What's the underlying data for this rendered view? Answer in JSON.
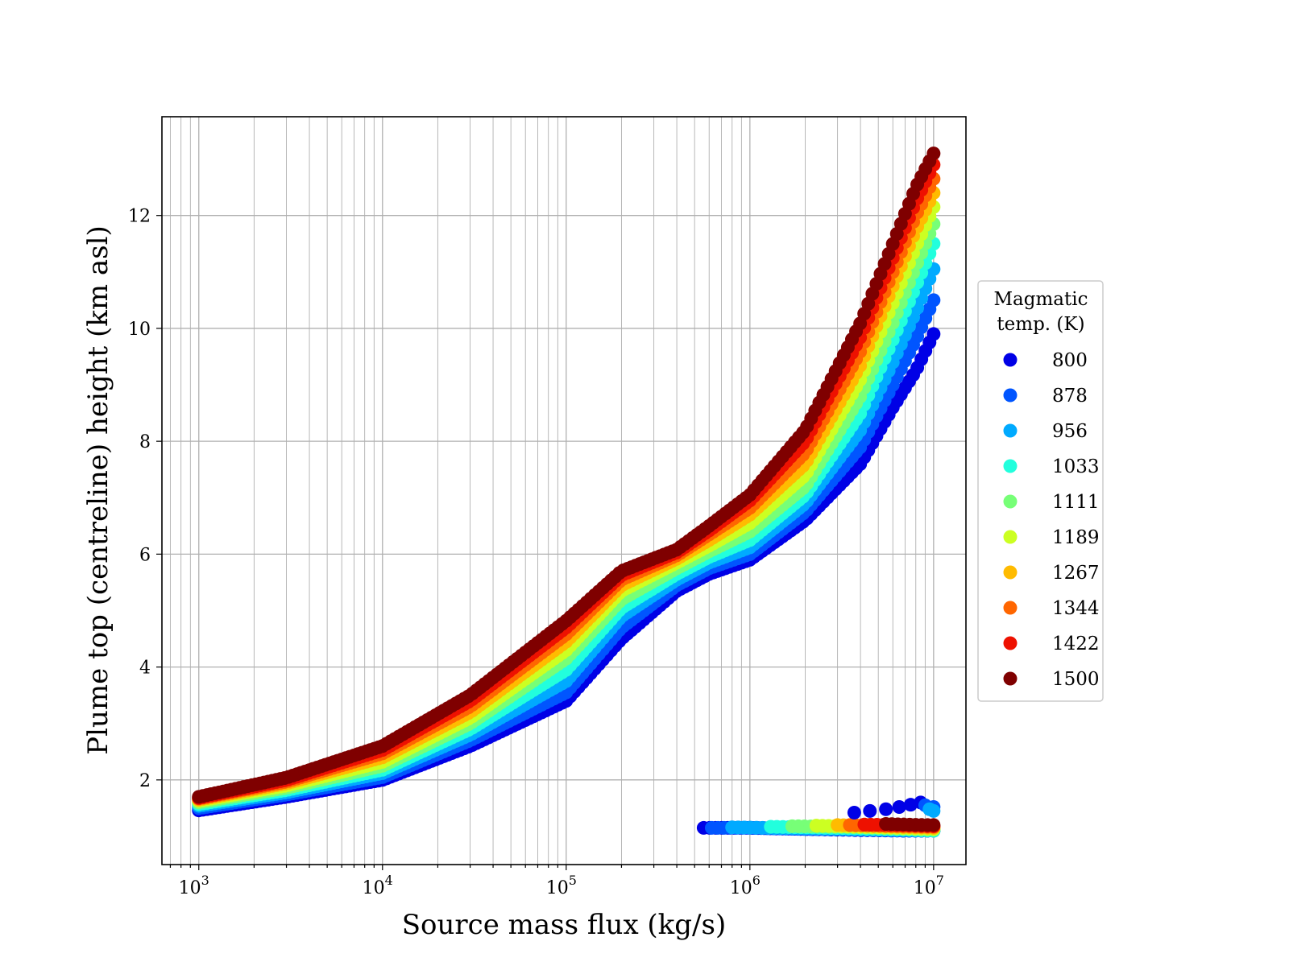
{
  "chart_data": {
    "type": "scatter",
    "title": "",
    "xlabel": "Source mass flux (kg/s)",
    "ylabel": "Plume top (centreline) height (km asl)",
    "x_scale": "log",
    "xlim": [
      630,
      15000000
    ],
    "ylim": [
      0.5,
      13.75
    ],
    "x_ticks": [
      {
        "value": 1000,
        "base": "10",
        "exp": "3"
      },
      {
        "value": 10000,
        "base": "10",
        "exp": "4"
      },
      {
        "value": 100000,
        "base": "10",
        "exp": "5"
      },
      {
        "value": 1000000,
        "base": "10",
        "exp": "6"
      },
      {
        "value": 10000000,
        "base": "10",
        "exp": "7"
      }
    ],
    "y_ticks": [
      2,
      4,
      6,
      8,
      10,
      12
    ],
    "grid": true,
    "legend": {
      "title_lines": [
        "Magmatic",
        "temp. (K)"
      ],
      "placement": "outside right"
    },
    "series": [
      {
        "name": "800",
        "color": "#0000e6",
        "upper": [
          [
            1000,
            1.46
          ],
          [
            3000,
            1.7
          ],
          [
            10000,
            2.0
          ],
          [
            30000,
            2.6
          ],
          [
            100000,
            3.4
          ],
          [
            200000,
            4.5
          ],
          [
            400000,
            5.35
          ],
          [
            600000,
            5.65
          ],
          [
            1000000,
            5.9
          ],
          [
            2000000,
            6.6
          ],
          [
            4000000,
            7.6
          ],
          [
            6000000,
            8.6
          ],
          [
            8000000,
            9.25
          ],
          [
            10000000,
            9.9
          ]
        ],
        "lower": [
          [
            560000,
            1.15
          ],
          [
            1000000,
            1.15
          ],
          [
            2000000,
            1.13
          ],
          [
            4000000,
            1.11
          ],
          [
            7000000,
            1.1
          ],
          [
            10000000,
            1.1
          ]
        ]
      },
      {
        "name": "878",
        "color": "#0055ff",
        "upper": [
          [
            1000,
            1.5
          ],
          [
            3000,
            1.74
          ],
          [
            10000,
            2.05
          ],
          [
            30000,
            2.7
          ],
          [
            100000,
            3.55
          ],
          [
            200000,
            4.7
          ],
          [
            400000,
            5.45
          ],
          [
            600000,
            5.75
          ],
          [
            1000000,
            6.0
          ],
          [
            2000000,
            6.75
          ],
          [
            4000000,
            7.9
          ],
          [
            6000000,
            9.0
          ],
          [
            8000000,
            9.8
          ],
          [
            10000000,
            10.5
          ]
        ],
        "lower": [
          [
            620000,
            1.15
          ],
          [
            1000000,
            1.15
          ],
          [
            2000000,
            1.13
          ],
          [
            4000000,
            1.12
          ],
          [
            7000000,
            1.1
          ],
          [
            10000000,
            1.1
          ]
        ]
      },
      {
        "name": "956",
        "color": "#00aaff",
        "upper": [
          [
            1000,
            1.54
          ],
          [
            3000,
            1.78
          ],
          [
            10000,
            2.12
          ],
          [
            30000,
            2.8
          ],
          [
            100000,
            3.75
          ],
          [
            200000,
            4.9
          ],
          [
            400000,
            5.55
          ],
          [
            600000,
            5.85
          ],
          [
            1000000,
            6.12
          ],
          [
            2000000,
            6.9
          ],
          [
            4000000,
            8.2
          ],
          [
            6000000,
            9.4
          ],
          [
            8000000,
            10.3
          ],
          [
            10000000,
            11.05
          ]
        ],
        "lower": [
          [
            800000,
            1.16
          ],
          [
            1200000,
            1.15
          ],
          [
            2000000,
            1.14
          ],
          [
            4000000,
            1.12
          ],
          [
            7000000,
            1.11
          ],
          [
            10000000,
            1.1
          ]
        ]
      },
      {
        "name": "1033",
        "color": "#22ffdd",
        "upper": [
          [
            1000,
            1.57
          ],
          [
            3000,
            1.82
          ],
          [
            10000,
            2.18
          ],
          [
            30000,
            2.9
          ],
          [
            100000,
            3.95
          ],
          [
            200000,
            5.05
          ],
          [
            400000,
            5.65
          ],
          [
            600000,
            5.95
          ],
          [
            1000000,
            6.25
          ],
          [
            2000000,
            7.05
          ],
          [
            4000000,
            8.5
          ],
          [
            6000000,
            9.8
          ],
          [
            8000000,
            10.75
          ],
          [
            10000000,
            11.5
          ]
        ],
        "lower": [
          [
            1300000,
            1.17
          ],
          [
            2000000,
            1.16
          ],
          [
            4000000,
            1.14
          ],
          [
            7000000,
            1.12
          ],
          [
            10000000,
            1.1
          ]
        ]
      },
      {
        "name": "1111",
        "color": "#77ff77",
        "upper": [
          [
            1000,
            1.6
          ],
          [
            3000,
            1.86
          ],
          [
            10000,
            2.25
          ],
          [
            30000,
            3.0
          ],
          [
            100000,
            4.15
          ],
          [
            200000,
            5.2
          ],
          [
            400000,
            5.75
          ],
          [
            600000,
            6.05
          ],
          [
            1000000,
            6.4
          ],
          [
            2000000,
            7.2
          ],
          [
            4000000,
            8.8
          ],
          [
            6000000,
            10.1
          ],
          [
            8000000,
            11.1
          ],
          [
            10000000,
            11.85
          ]
        ],
        "lower": [
          [
            1700000,
            1.18
          ],
          [
            3000000,
            1.17
          ],
          [
            5000000,
            1.15
          ],
          [
            8000000,
            1.13
          ],
          [
            10000000,
            1.12
          ]
        ]
      },
      {
        "name": "1189",
        "color": "#ccff22",
        "upper": [
          [
            1000,
            1.63
          ],
          [
            3000,
            1.9
          ],
          [
            10000,
            2.32
          ],
          [
            30000,
            3.1
          ],
          [
            100000,
            4.3
          ],
          [
            200000,
            5.35
          ],
          [
            400000,
            5.85
          ],
          [
            600000,
            6.15
          ],
          [
            1000000,
            6.55
          ],
          [
            2000000,
            7.4
          ],
          [
            4000000,
            9.1
          ],
          [
            6000000,
            10.45
          ],
          [
            8000000,
            11.45
          ],
          [
            10000000,
            12.15
          ]
        ],
        "lower": [
          [
            2300000,
            1.19
          ],
          [
            3000000,
            1.18
          ],
          [
            5000000,
            1.16
          ],
          [
            8000000,
            1.14
          ],
          [
            10000000,
            1.13
          ]
        ]
      },
      {
        "name": "1267",
        "color": "#ffbb00",
        "upper": [
          [
            1000,
            1.65
          ],
          [
            3000,
            1.94
          ],
          [
            10000,
            2.4
          ],
          [
            30000,
            3.2
          ],
          [
            100000,
            4.45
          ],
          [
            200000,
            5.45
          ],
          [
            400000,
            5.92
          ],
          [
            600000,
            6.25
          ],
          [
            1000000,
            6.7
          ],
          [
            2000000,
            7.6
          ],
          [
            4000000,
            9.35
          ],
          [
            6000000,
            10.75
          ],
          [
            8000000,
            11.75
          ],
          [
            10000000,
            12.4
          ]
        ],
        "lower": [
          [
            3000000,
            1.2
          ],
          [
            4000000,
            1.19
          ],
          [
            6000000,
            1.17
          ],
          [
            8000000,
            1.16
          ],
          [
            10000000,
            1.15
          ]
        ]
      },
      {
        "name": "1344",
        "color": "#ff6600",
        "upper": [
          [
            1000,
            1.67
          ],
          [
            3000,
            1.97
          ],
          [
            10000,
            2.47
          ],
          [
            30000,
            3.3
          ],
          [
            100000,
            4.58
          ],
          [
            200000,
            5.55
          ],
          [
            400000,
            5.98
          ],
          [
            600000,
            6.35
          ],
          [
            1000000,
            6.82
          ],
          [
            2000000,
            7.8
          ],
          [
            4000000,
            9.6
          ],
          [
            6000000,
            11.0
          ],
          [
            8000000,
            12.0
          ],
          [
            10000000,
            12.65
          ]
        ],
        "lower": [
          [
            3500000,
            1.2
          ],
          [
            5000000,
            1.19
          ],
          [
            7000000,
            1.18
          ],
          [
            10000000,
            1.17
          ]
        ]
      },
      {
        "name": "1422",
        "color": "#ee1100",
        "upper": [
          [
            1000,
            1.68
          ],
          [
            3000,
            2.0
          ],
          [
            10000,
            2.53
          ],
          [
            30000,
            3.4
          ],
          [
            100000,
            4.7
          ],
          [
            200000,
            5.63
          ],
          [
            400000,
            6.03
          ],
          [
            600000,
            6.42
          ],
          [
            1000000,
            6.95
          ],
          [
            2000000,
            8.0
          ],
          [
            4000000,
            9.85
          ],
          [
            6000000,
            11.25
          ],
          [
            8000000,
            12.25
          ],
          [
            10000000,
            12.9
          ]
        ],
        "lower": [
          [
            4200000,
            1.21
          ],
          [
            6000000,
            1.2
          ],
          [
            8000000,
            1.19
          ],
          [
            10000000,
            1.18
          ]
        ]
      },
      {
        "name": "1500",
        "color": "#7f0000",
        "upper": [
          [
            1000,
            1.7
          ],
          [
            3000,
            2.04
          ],
          [
            10000,
            2.6
          ],
          [
            30000,
            3.5
          ],
          [
            100000,
            4.82
          ],
          [
            200000,
            5.7
          ],
          [
            400000,
            6.08
          ],
          [
            600000,
            6.5
          ],
          [
            1000000,
            7.05
          ],
          [
            2000000,
            8.2
          ],
          [
            4000000,
            10.1
          ],
          [
            6000000,
            11.5
          ],
          [
            8000000,
            12.5
          ],
          [
            10000000,
            13.1
          ]
        ],
        "lower": [
          [
            5500000,
            1.22
          ],
          [
            7000000,
            1.21
          ],
          [
            9000000,
            1.2
          ],
          [
            10000000,
            1.2
          ]
        ]
      }
    ],
    "extra_points": [
      {
        "series": "800",
        "x": 3700000,
        "y": 1.42
      },
      {
        "series": "800",
        "x": 4500000,
        "y": 1.45
      },
      {
        "series": "800",
        "x": 5500000,
        "y": 1.48
      },
      {
        "series": "800",
        "x": 6500000,
        "y": 1.52
      },
      {
        "series": "800",
        "x": 7500000,
        "y": 1.56
      },
      {
        "series": "800",
        "x": 8500000,
        "y": 1.6
      },
      {
        "series": "878",
        "x": 9000000,
        "y": 1.55
      },
      {
        "series": "878",
        "x": 10000000,
        "y": 1.52
      },
      {
        "series": "956",
        "x": 9500000,
        "y": 1.48
      },
      {
        "series": "956",
        "x": 10000000,
        "y": 1.45
      }
    ]
  }
}
